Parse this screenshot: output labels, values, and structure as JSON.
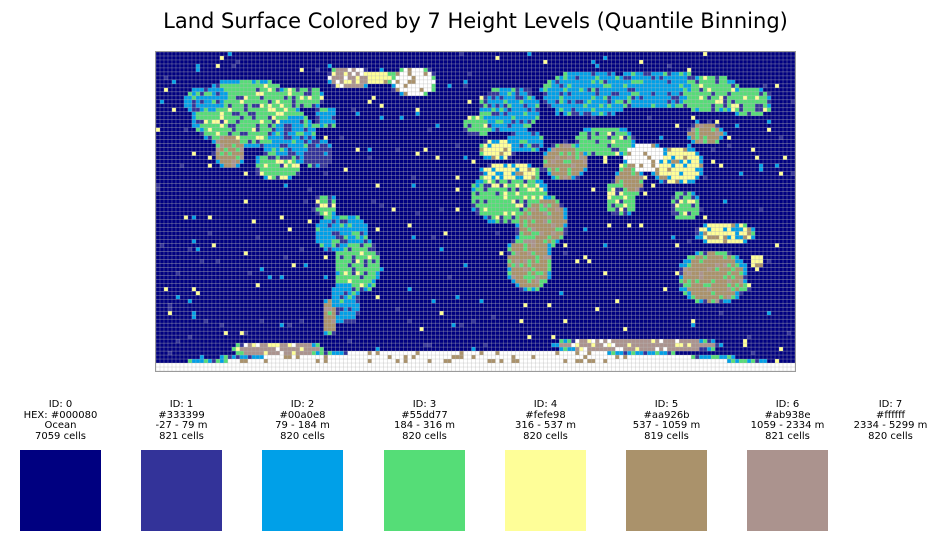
{
  "title": "Land Surface Colored by 7 Height Levels (Quantile Binning)",
  "map": {
    "type": "world-elevation-grid",
    "grid_lines": true,
    "grid_color": "#b4b4b4"
  },
  "legend": [
    {
      "id_label": "ID: 0",
      "color_label": "HEX: #000080",
      "range_label": "Ocean",
      "count_label": "7059 cells",
      "color": "#000080",
      "cells": 7059
    },
    {
      "id_label": "ID: 1",
      "color_label": "#333399",
      "range_label": "-27 - 79 m",
      "count_label": "821 cells",
      "color": "#333399",
      "cells": 821
    },
    {
      "id_label": "ID: 2",
      "color_label": "#00a0e8",
      "range_label": "79 - 184 m",
      "count_label": "820 cells",
      "color": "#00a0e8",
      "cells": 820
    },
    {
      "id_label": "ID: 3",
      "color_label": "#55dd77",
      "range_label": "184 - 316 m",
      "count_label": "820 cells",
      "color": "#55dd77",
      "cells": 820
    },
    {
      "id_label": "ID: 4",
      "color_label": "#fefe98",
      "range_label": "316 - 537 m",
      "count_label": "820 cells",
      "color": "#fefe98",
      "cells": 820
    },
    {
      "id_label": "ID: 5",
      "color_label": "#aa926b",
      "range_label": "537 - 1059 m",
      "count_label": "819 cells",
      "color": "#aa926b",
      "cells": 819
    },
    {
      "id_label": "ID: 6",
      "color_label": "#ab938e",
      "range_label": "1059 - 2334 m",
      "count_label": "821 cells",
      "color": "#ab938e",
      "cells": 821
    },
    {
      "id_label": "ID: 7",
      "color_label": "#ffffff",
      "range_label": "2334 - 5299 m",
      "count_label": "820 cells",
      "color": "#ffffff",
      "cells": 820
    }
  ]
}
